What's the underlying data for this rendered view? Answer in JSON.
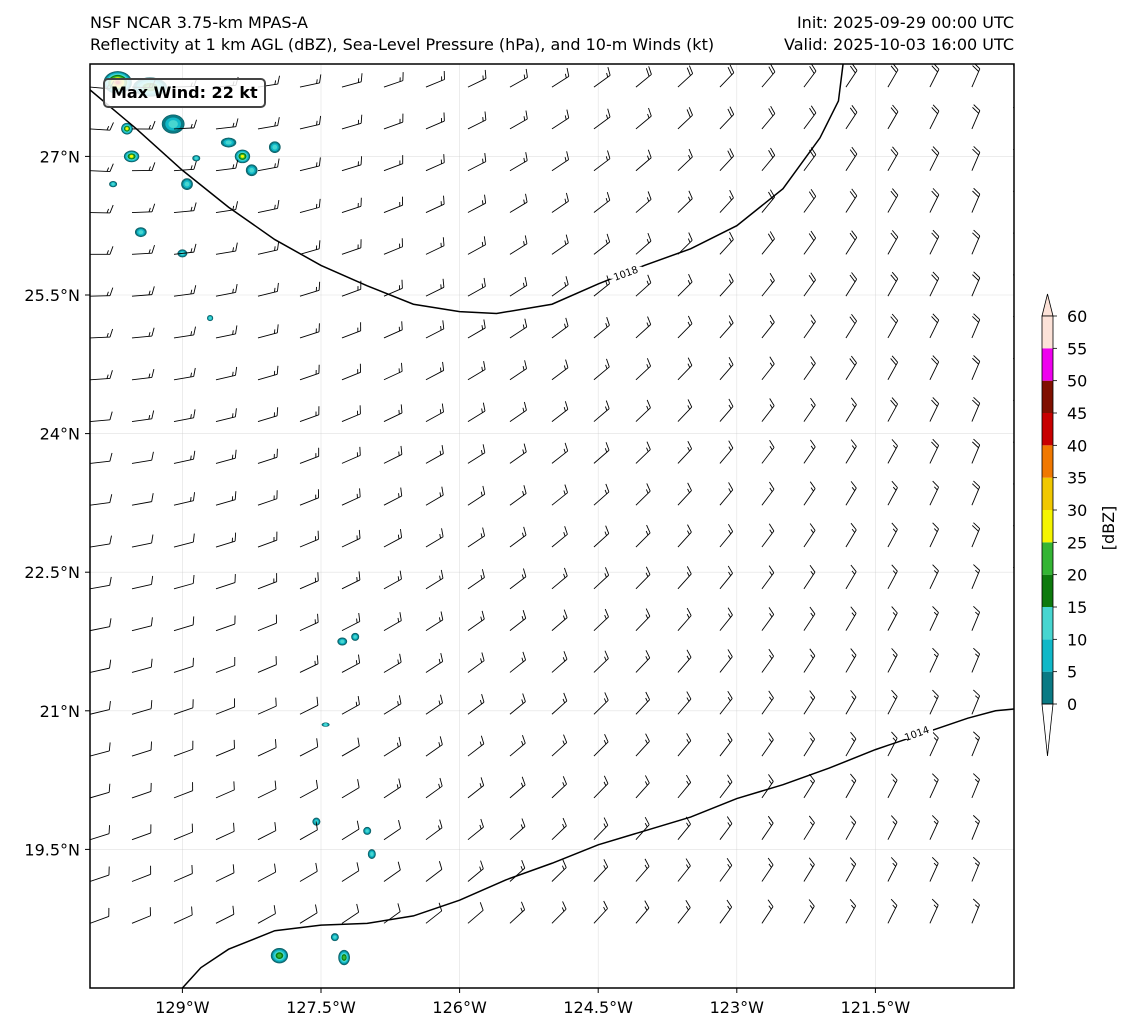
{
  "header": {
    "model": "NSF NCAR 3.75-km MPAS-A",
    "description": "Reflectivity at 1 km AGL (dBZ), Sea-Level Pressure (hPa), and 10-m Winds (kt)",
    "init": "Init: 2025-09-29 00:00 UTC",
    "valid": "Valid: 2025-10-03 16:00 UTC"
  },
  "annotation": {
    "max_wind": "Max Wind: 22 kt"
  },
  "map": {
    "lon_range": [
      -130.0,
      -120.0
    ],
    "lat_range": [
      18.0,
      28.0
    ],
    "lon_ticks": [
      {
        "value": -129.0,
        "label": "129°W"
      },
      {
        "value": -127.5,
        "label": "127.5°W"
      },
      {
        "value": -126.0,
        "label": "126°W"
      },
      {
        "value": -124.5,
        "label": "124.5°W"
      },
      {
        "value": -123.0,
        "label": "123°W"
      },
      {
        "value": -121.5,
        "label": "121.5°W"
      }
    ],
    "lat_ticks": [
      {
        "value": 27.0,
        "label": "27°N"
      },
      {
        "value": 25.5,
        "label": "25.5°N"
      },
      {
        "value": 24.0,
        "label": "24°N"
      },
      {
        "value": 22.5,
        "label": "22.5°N"
      },
      {
        "value": 21.0,
        "label": "21°N"
      },
      {
        "value": 19.5,
        "label": "19.5°N"
      }
    ],
    "isobars": [
      {
        "label": "1018",
        "label_at": [
          -124.2,
          25.73
        ],
        "points": [
          [
            -130.0,
            27.72
          ],
          [
            -129.5,
            27.3
          ],
          [
            -129.0,
            26.85
          ],
          [
            -128.5,
            26.45
          ],
          [
            -128.0,
            26.1
          ],
          [
            -127.5,
            25.82
          ],
          [
            -127.0,
            25.6
          ],
          [
            -126.5,
            25.4
          ],
          [
            -126.0,
            25.32
          ],
          [
            -125.6,
            25.3
          ],
          [
            -125.0,
            25.4
          ],
          [
            -124.5,
            25.62
          ],
          [
            -124.0,
            25.82
          ],
          [
            -123.5,
            26.0
          ],
          [
            -123.0,
            26.25
          ],
          [
            -122.5,
            26.65
          ],
          [
            -122.1,
            27.2
          ],
          [
            -121.9,
            27.6
          ],
          [
            -121.85,
            28.0
          ]
        ]
      },
      {
        "label": "1014",
        "label_at": [
          -121.05,
          20.75
        ],
        "points": [
          [
            -129.0,
            18.0
          ],
          [
            -128.8,
            18.22
          ],
          [
            -128.5,
            18.42
          ],
          [
            -128.0,
            18.62
          ],
          [
            -127.5,
            18.68
          ],
          [
            -127.0,
            18.7
          ],
          [
            -126.5,
            18.78
          ],
          [
            -126.0,
            18.95
          ],
          [
            -125.5,
            19.17
          ],
          [
            -125.0,
            19.35
          ],
          [
            -124.5,
            19.55
          ],
          [
            -124.0,
            19.7
          ],
          [
            -123.5,
            19.85
          ],
          [
            -123.0,
            20.05
          ],
          [
            -122.5,
            20.2
          ],
          [
            -122.0,
            20.38
          ],
          [
            -121.5,
            20.58
          ],
          [
            -121.0,
            20.75
          ],
          [
            -120.5,
            20.92
          ],
          [
            -120.2,
            21.0
          ],
          [
            -120.0,
            21.02
          ]
        ]
      }
    ],
    "wind_barbs": {
      "grid_lon_start": -130.0,
      "grid_lon_step": 0.4545,
      "grid_lat_start": 27.75,
      "grid_lat_step": 0.4525,
      "cols": 23,
      "rows": 21,
      "note_units": "kt"
    },
    "echoes": [
      {
        "lon": -129.1,
        "lat": 27.35,
        "rx": 0.12,
        "ry": 0.1,
        "max_dbz": 10
      },
      {
        "lon": -129.6,
        "lat": 27.3,
        "rx": 0.06,
        "ry": 0.06,
        "max_dbz": 25
      },
      {
        "lon": -129.55,
        "lat": 27.0,
        "rx": 0.08,
        "ry": 0.06,
        "max_dbz": 25
      },
      {
        "lon": -128.5,
        "lat": 27.15,
        "rx": 0.08,
        "ry": 0.05,
        "max_dbz": 10
      },
      {
        "lon": -128.35,
        "lat": 27.0,
        "rx": 0.08,
        "ry": 0.07,
        "max_dbz": 25
      },
      {
        "lon": -128.25,
        "lat": 26.85,
        "rx": 0.06,
        "ry": 0.06,
        "max_dbz": 10
      },
      {
        "lon": -128.0,
        "lat": 27.1,
        "rx": 0.06,
        "ry": 0.06,
        "max_dbz": 10
      },
      {
        "lon": -128.95,
        "lat": 26.7,
        "rx": 0.06,
        "ry": 0.06,
        "max_dbz": 10
      },
      {
        "lon": -129.75,
        "lat": 26.7,
        "rx": 0.04,
        "ry": 0.03,
        "max_dbz": 10
      },
      {
        "lon": -129.45,
        "lat": 26.18,
        "rx": 0.06,
        "ry": 0.05,
        "max_dbz": 10
      },
      {
        "lon": -129.0,
        "lat": 25.95,
        "rx": 0.05,
        "ry": 0.04,
        "max_dbz": 10
      },
      {
        "lon": -128.7,
        "lat": 25.25,
        "rx": 0.03,
        "ry": 0.03,
        "max_dbz": 10
      },
      {
        "lon": -128.85,
        "lat": 26.98,
        "rx": 0.04,
        "ry": 0.03,
        "max_dbz": 10
      },
      {
        "lon": -129.7,
        "lat": 27.8,
        "rx": 0.15,
        "ry": 0.12,
        "max_dbz": 40
      },
      {
        "lon": -129.35,
        "lat": 27.75,
        "rx": 0.18,
        "ry": 0.1,
        "max_dbz": 20
      },
      {
        "lon": -127.27,
        "lat": 21.75,
        "rx": 0.05,
        "ry": 0.04,
        "max_dbz": 10
      },
      {
        "lon": -127.13,
        "lat": 21.8,
        "rx": 0.04,
        "ry": 0.04,
        "max_dbz": 10
      },
      {
        "lon": -127.45,
        "lat": 20.85,
        "rx": 0.04,
        "ry": 0.02,
        "max_dbz": 10
      },
      {
        "lon": -127.55,
        "lat": 19.8,
        "rx": 0.04,
        "ry": 0.04,
        "max_dbz": 10
      },
      {
        "lon": -127.0,
        "lat": 19.7,
        "rx": 0.04,
        "ry": 0.04,
        "max_dbz": 10
      },
      {
        "lon": -126.95,
        "lat": 19.45,
        "rx": 0.04,
        "ry": 0.05,
        "max_dbz": 10
      },
      {
        "lon": -127.35,
        "lat": 18.55,
        "rx": 0.04,
        "ry": 0.04,
        "max_dbz": 10
      },
      {
        "lon": -127.95,
        "lat": 18.35,
        "rx": 0.09,
        "ry": 0.08,
        "max_dbz": 20
      },
      {
        "lon": -127.25,
        "lat": 18.33,
        "rx": 0.06,
        "ry": 0.08,
        "max_dbz": 20
      }
    ]
  },
  "colorbar": {
    "label": "[dBZ]",
    "levels": [
      0,
      5,
      10,
      15,
      20,
      25,
      30,
      35,
      40,
      45,
      50,
      55,
      60
    ],
    "colors": [
      "#0a7a84",
      "#10b8c8",
      "#47d6d0",
      "#0d7a0d",
      "#34b534",
      "#f5f500",
      "#f0c800",
      "#f07800",
      "#c80000",
      "#801000",
      "#ee00ee",
      "#fce2d8"
    ],
    "under_color": "#ffffff",
    "over_color": "#fce2d8"
  },
  "styles": {
    "frame_color": "#000000",
    "grid_color": "#cccccc",
    "isobar_color": "#000000",
    "barb_color": "#000000"
  }
}
